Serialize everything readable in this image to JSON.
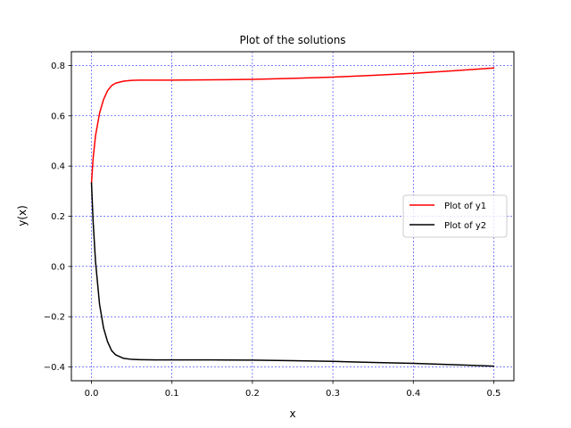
{
  "chart_data": {
    "type": "line",
    "title": "Plot of the solutions",
    "xlabel": "x",
    "ylabel": "y(x)",
    "xlim": [
      -0.025,
      0.525
    ],
    "ylim": [
      -0.455,
      0.855
    ],
    "xticks": [
      0.0,
      0.1,
      0.2,
      0.3,
      0.4,
      0.5
    ],
    "xtick_labels": [
      "0.0",
      "0.1",
      "0.2",
      "0.3",
      "0.4",
      "0.5"
    ],
    "yticks": [
      -0.4,
      -0.2,
      0.0,
      0.2,
      0.4,
      0.6,
      0.8
    ],
    "ytick_labels": [
      "−0.4",
      "−0.2",
      "0.0",
      "0.2",
      "0.4",
      "0.6",
      "0.8"
    ],
    "grid": true,
    "grid_color": "#0000ff",
    "legend_position": "center-right",
    "series": [
      {
        "name": "Plot of y1",
        "color": "#ff0000",
        "x": [
          0.0,
          0.002,
          0.005,
          0.01,
          0.015,
          0.02,
          0.025,
          0.03,
          0.04,
          0.05,
          0.06,
          0.08,
          0.1,
          0.15,
          0.2,
          0.25,
          0.3,
          0.35,
          0.4,
          0.45,
          0.5
        ],
        "y": [
          0.333,
          0.43,
          0.52,
          0.61,
          0.665,
          0.7,
          0.72,
          0.73,
          0.738,
          0.741,
          0.742,
          0.742,
          0.742,
          0.743,
          0.745,
          0.749,
          0.754,
          0.761,
          0.769,
          0.779,
          0.79
        ]
      },
      {
        "name": "Plot of y2",
        "color": "#000000",
        "x": [
          0.0,
          0.002,
          0.005,
          0.01,
          0.015,
          0.02,
          0.025,
          0.03,
          0.04,
          0.05,
          0.06,
          0.08,
          0.1,
          0.15,
          0.2,
          0.25,
          0.3,
          0.35,
          0.4,
          0.45,
          0.5
        ],
        "y": [
          0.333,
          0.18,
          0.02,
          -0.15,
          -0.245,
          -0.3,
          -0.335,
          -0.352,
          -0.366,
          -0.37,
          -0.371,
          -0.372,
          -0.372,
          -0.372,
          -0.373,
          -0.375,
          -0.378,
          -0.382,
          -0.386,
          -0.391,
          -0.397
        ]
      }
    ]
  }
}
